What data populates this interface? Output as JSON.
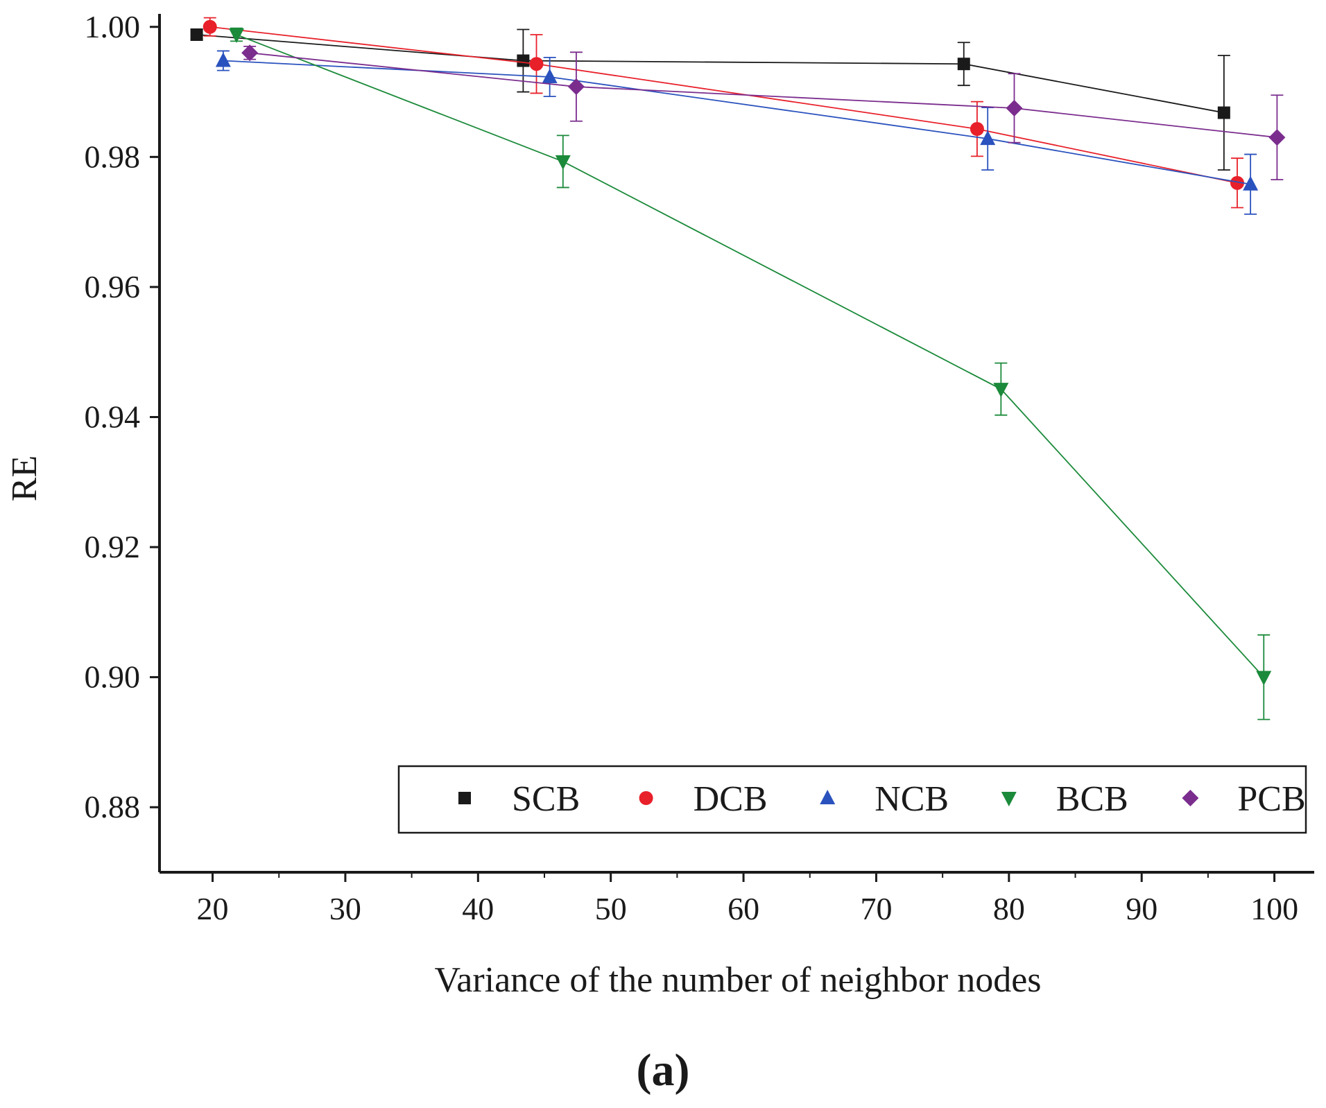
{
  "chart_data": {
    "type": "line",
    "title": "",
    "xlabel": "Variance of the number of neighbor nodes",
    "ylabel": "RE",
    "panel_label": "(a)",
    "xlim": [
      16,
      103
    ],
    "ylim": [
      0.87,
      1.002
    ],
    "xticks": [
      20,
      30,
      40,
      50,
      60,
      70,
      80,
      90,
      100
    ],
    "yticks": [
      0.88,
      0.9,
      0.92,
      0.94,
      0.96,
      0.98,
      1.0
    ],
    "xtick_labels": [
      "20",
      "30",
      "40",
      "50",
      "60",
      "70",
      "80",
      "90",
      "100"
    ],
    "ytick_labels": [
      "0.88",
      "0.90",
      "0.92",
      "0.94",
      "0.96",
      "0.98",
      "1.00"
    ],
    "grid": false,
    "legend_position": "bottom-right",
    "series": [
      {
        "name": "SCB",
        "color": "#1a1a1a",
        "marker": "square",
        "x": [
          18.8,
          43.4,
          76.6,
          96.2
        ],
        "y": [
          0.9988,
          0.9948,
          0.9943,
          0.9868
        ],
        "err": [
          0.0008,
          0.0048,
          0.0033,
          0.0088
        ]
      },
      {
        "name": "DCB",
        "color": "#e8202a",
        "marker": "circle",
        "x": [
          19.8,
          44.4,
          77.6,
          97.2
        ],
        "y": [
          1.0,
          0.9943,
          0.9843,
          0.976
        ],
        "err": [
          0.0014,
          0.0045,
          0.0042,
          0.0038
        ]
      },
      {
        "name": "NCB",
        "color": "#2a52be",
        "marker": "triangle-up",
        "x": [
          20.8,
          45.4,
          78.4,
          98.2
        ],
        "y": [
          0.9948,
          0.9923,
          0.9828,
          0.9758
        ],
        "err": [
          0.0015,
          0.003,
          0.0048,
          0.0046
        ]
      },
      {
        "name": "BCB",
        "color": "#1b8a3a",
        "marker": "triangle-down",
        "x": [
          21.8,
          46.4,
          79.4,
          99.2
        ],
        "y": [
          0.9988,
          0.9793,
          0.9443,
          0.9
        ],
        "err": [
          0.001,
          0.004,
          0.004,
          0.0065
        ]
      },
      {
        "name": "PCB",
        "color": "#7b2d8e",
        "marker": "diamond",
        "x": [
          22.8,
          47.4,
          80.4,
          100.2
        ],
        "y": [
          0.996,
          0.9908,
          0.9875,
          0.983
        ],
        "err": [
          0.001,
          0.0053,
          0.0053,
          0.0065
        ]
      }
    ]
  }
}
